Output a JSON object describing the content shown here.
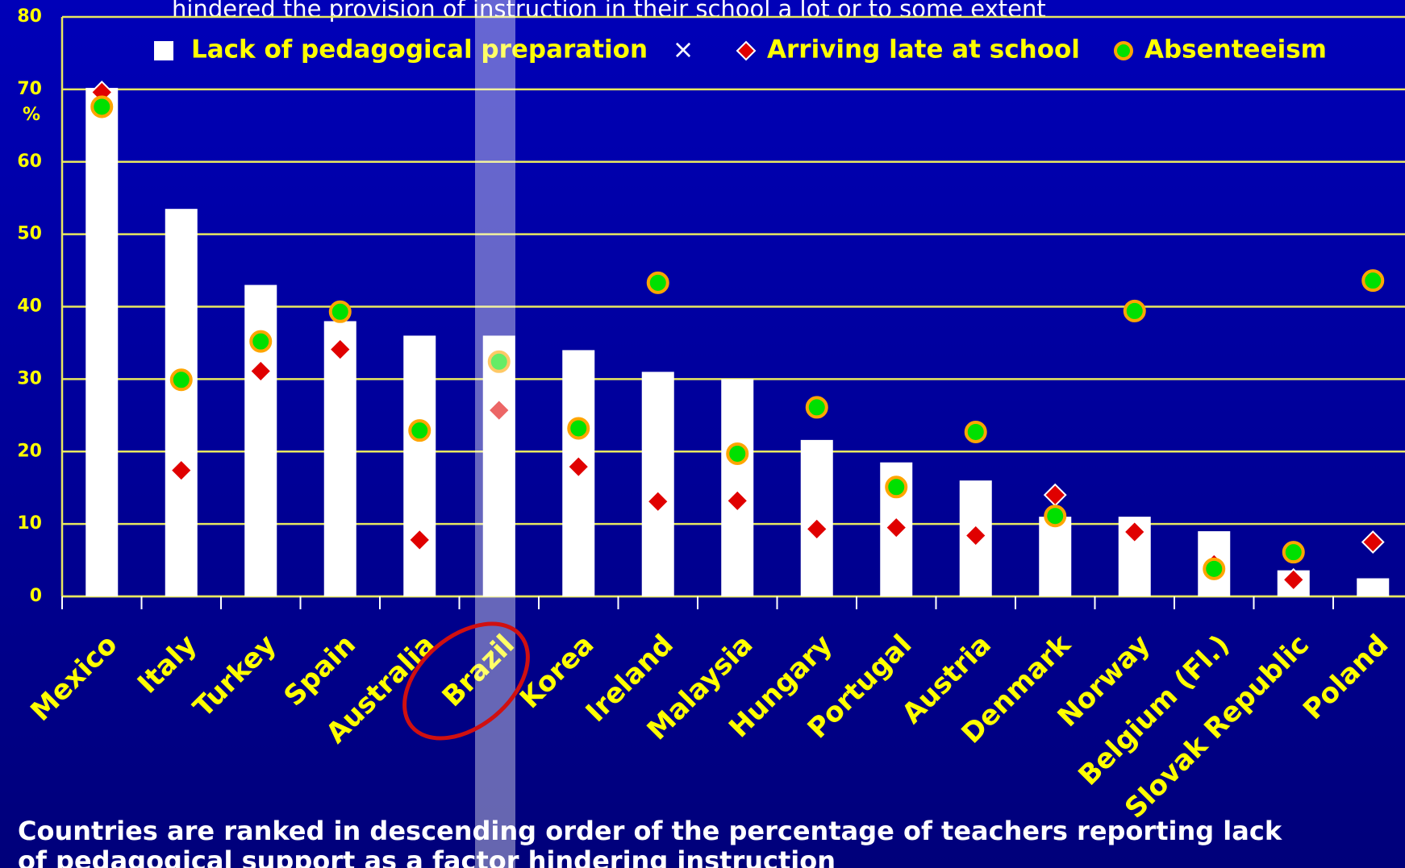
{
  "chart_data": {
    "type": "bar",
    "title": "hindered the provision of instruction in their school a lot or to some extent",
    "y_label": "%",
    "footnote": [
      "Countries are ranked in descending order of the percentage of  teachers reporting lack",
      "of pedagogical support as a factor hindering instruction"
    ],
    "categories": [
      "Mexico",
      "Italy",
      "Turkey",
      "Spain",
      "Australia",
      "Brazil",
      "Korea",
      "Ireland",
      "Malaysia",
      "Hungary",
      "Portugal",
      "Austria",
      "Denmark",
      "Norway",
      "Belgium (Fl.)",
      "Slovak Republic",
      "Poland"
    ],
    "series": [
      {
        "name": "Lack of pedagogical preparation",
        "color": "#ffffff",
        "marker": "bar",
        "values": [
          70.2,
          53.5,
          43,
          38,
          36,
          36,
          34,
          31,
          30,
          21.6,
          18.5,
          16,
          11,
          11,
          9,
          3.6,
          2.5
        ]
      },
      {
        "name": "Arriving late at school",
        "color": "#e00000",
        "marker": "diamond",
        "values": [
          69.6,
          17.4,
          31.1,
          34.1,
          7.8,
          25.7,
          17.9,
          13.1,
          13.2,
          9.3,
          9.5,
          8.4,
          14,
          8.9,
          4.4,
          2.3,
          7.5
        ]
      },
      {
        "name": "Absenteeism",
        "color": "#00e000",
        "marker": "circle",
        "values": [
          67.6,
          29.9,
          35.2,
          39.3,
          22.9,
          32.4,
          23.2,
          43.3,
          19.7,
          26.1,
          15.1,
          22.7,
          11.1,
          39.4,
          3.8,
          6.1,
          43.6
        ]
      }
    ],
    "ylim": [
      0,
      80
    ],
    "yticks": [
      0,
      10,
      20,
      30,
      40,
      50,
      60,
      70,
      80
    ],
    "grid": true
  }
}
